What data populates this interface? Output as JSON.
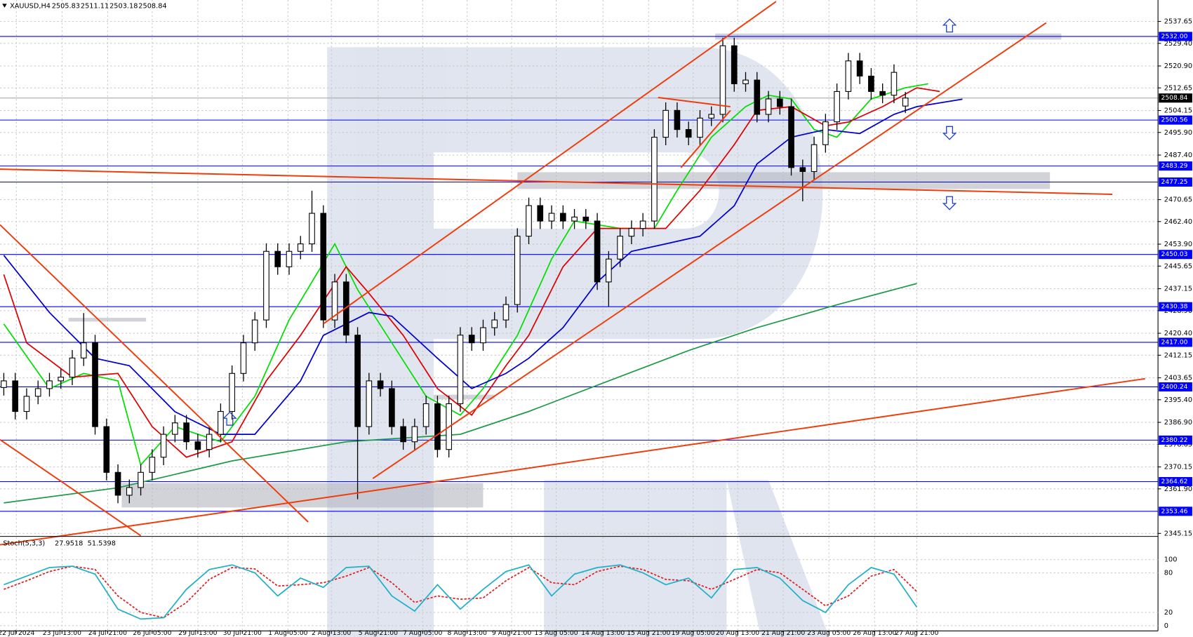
{
  "chart_data": {
    "type": "candlestick",
    "symbol": "XAUUSD,H4",
    "open": [
      2400.0,
      2402.5,
      2391.0,
      2396.7,
      2399.6,
      2402.5,
      2403.9,
      2411.1,
      2416.8,
      2385.3,
      2368.1,
      2359.5,
      2362.4,
      2368.1,
      2373.8,
      2382.4,
      2386.7,
      2379.6,
      2376.7,
      2382.4,
      2391.0,
      2405.3,
      2416.8,
      2425.4,
      2451.2,
      2445.4,
      2451.2,
      2454.0,
      2465.5,
      2425.4,
      2439.7,
      2419.7,
      2385.3,
      2402.5,
      2399.6,
      2385.3,
      2379.6,
      2385.3,
      2393.9,
      2376.7,
      2393.9,
      2419.7,
      2416.8,
      2422.5,
      2425.4,
      2431.2,
      2456.9,
      2468.4,
      2462.6,
      2465.5,
      2462.6,
      2464.1,
      2462.6,
      2439.7,
      2448.3,
      2456.9,
      2459.8,
      2462.6,
      2494.1,
      2504.2,
      2497.0,
      2494.1,
      2501.3,
      2502.7,
      2528.5,
      2514.2,
      2515.6,
      2502.7,
      2508.5,
      2505.6,
      2482.7,
      2481.2,
      2491.3,
      2499.9,
      2511.3,
      2522.8,
      2517.1,
      2511.3,
      2509.9,
      2505.83
    ],
    "high": [
      2405.5,
      2405.5,
      2399.7,
      2402.6,
      2405.5,
      2406.9,
      2414.1,
      2428.0,
      2419.8,
      2388.3,
      2371.1,
      2365.4,
      2371.1,
      2376.8,
      2385.4,
      2389.7,
      2389.7,
      2382.6,
      2385.4,
      2394.0,
      2408.3,
      2419.8,
      2428.4,
      2454.2,
      2454.2,
      2454.2,
      2457.0,
      2474.0,
      2468.5,
      2442.7,
      2442.7,
      2422.7,
      2405.5,
      2405.5,
      2402.6,
      2388.3,
      2388.3,
      2396.9,
      2396.9,
      2396.9,
      2422.7,
      2422.7,
      2425.5,
      2428.4,
      2434.2,
      2459.9,
      2471.4,
      2471.4,
      2468.5,
      2468.5,
      2467.1,
      2467.1,
      2465.6,
      2451.3,
      2459.9,
      2462.8,
      2465.6,
      2497.1,
      2507.2,
      2507.2,
      2500.0,
      2504.3,
      2505.7,
      2531.5,
      2531.5,
      2518.6,
      2518.6,
      2511.5,
      2511.5,
      2508.6,
      2485.7,
      2494.3,
      2502.9,
      2514.3,
      2525.8,
      2525.8,
      2520.1,
      2514.3,
      2521.5,
      2511.11
    ],
    "low": [
      2397.0,
      2388.0,
      2388.0,
      2393.7,
      2396.6,
      2399.5,
      2400.9,
      2408.1,
      2382.3,
      2365.1,
      2356.5,
      2356.5,
      2359.4,
      2365.1,
      2370.8,
      2379.4,
      2376.6,
      2373.7,
      2373.7,
      2379.4,
      2388.0,
      2402.3,
      2413.8,
      2422.4,
      2442.4,
      2442.4,
      2448.2,
      2451.0,
      2422.4,
      2422.4,
      2416.7,
      2358.0,
      2382.3,
      2396.6,
      2382.3,
      2376.6,
      2376.6,
      2382.3,
      2373.7,
      2373.7,
      2390.9,
      2413.8,
      2413.8,
      2419.5,
      2422.4,
      2428.2,
      2453.9,
      2459.6,
      2459.6,
      2459.6,
      2459.6,
      2459.6,
      2436.7,
      2430.5,
      2445.3,
      2453.9,
      2456.8,
      2459.6,
      2491.1,
      2494.0,
      2491.1,
      2491.1,
      2498.3,
      2499.7,
      2511.2,
      2511.2,
      2499.7,
      2499.7,
      2502.6,
      2479.7,
      2470.0,
      2478.2,
      2488.3,
      2496.9,
      2508.3,
      2514.1,
      2508.3,
      2506.9,
      2506.9,
      2503.18
    ],
    "close": [
      2402.5,
      2391.0,
      2396.7,
      2399.6,
      2402.5,
      2403.9,
      2411.1,
      2416.8,
      2385.3,
      2368.1,
      2359.5,
      2362.4,
      2368.1,
      2373.8,
      2382.4,
      2386.7,
      2379.6,
      2376.7,
      2382.4,
      2391.0,
      2405.3,
      2416.8,
      2425.4,
      2451.2,
      2445.4,
      2451.2,
      2454.0,
      2465.5,
      2425.4,
      2439.7,
      2419.7,
      2385.3,
      2402.5,
      2399.6,
      2385.3,
      2379.6,
      2385.3,
      2393.9,
      2376.7,
      2393.9,
      2419.7,
      2416.8,
      2422.5,
      2425.4,
      2431.2,
      2456.9,
      2468.4,
      2462.6,
      2465.5,
      2462.6,
      2464.1,
      2462.6,
      2439.7,
      2448.3,
      2456.9,
      2459.8,
      2462.6,
      2494.1,
      2504.2,
      2497.0,
      2494.1,
      2501.3,
      2502.7,
      2528.5,
      2514.2,
      2515.6,
      2502.7,
      2508.5,
      2505.6,
      2482.7,
      2481.2,
      2491.3,
      2499.9,
      2511.3,
      2522.8,
      2517.1,
      2511.3,
      2509.9,
      2518.5,
      2508.84
    ],
    "ylim": [
      2344.3,
      2545.7
    ],
    "yticks": [
      2537.65,
      {
        "value": 2529.4,
        "label": "2529.40"
      },
      {
        "value": 2520.9,
        "label": "2520.90"
      },
      2512.65,
      2504.15,
      {
        "value": 2495.9,
        "label": "2495.90"
      },
      {
        "value": 2487.4,
        "label": "2487.40"
      },
      2470.65,
      {
        "value": 2462.4,
        "label": "2462.40"
      },
      {
        "value": 2453.9,
        "label": "2453.90"
      },
      2445.65,
      2437.15,
      {
        "value": 2428.9,
        "label": "2428.90"
      },
      {
        "value": 2420.4,
        "label": "2420.40"
      },
      2412.15,
      2403.65,
      {
        "value": 2395.4,
        "label": "2395.40"
      },
      {
        "value": 2386.9,
        "label": "2386.90"
      },
      2378.65,
      2370.15,
      {
        "value": 2361.9,
        "label": "2361.90"
      },
      2345.15
    ],
    "levels": [
      {
        "value": 2532,
        "label": "2532.00"
      },
      2500.56,
      2483.29,
      2477.25,
      2450.03,
      2430.38,
      {
        "value": 2417,
        "label": "2417.00"
      },
      2400.24,
      2380.22,
      2364.62,
      2353.46
    ],
    "level_color": "#0000ff",
    "xticks": [
      {
        "value": 1.1,
        "label": "22 Jul 2024"
      },
      {
        "value": 5.1,
        "label": "23 Jul 13:00"
      },
      {
        "value": 9.1,
        "label": "24 Jul 21:00"
      },
      {
        "value": 13,
        "label": "26 Jul 05:00"
      },
      {
        "value": 17,
        "label": "29 Jul 13:00"
      },
      {
        "value": 20.9,
        "label": "30 Jul 21:00"
      },
      {
        "value": 24.9,
        "label": "1 Aug 05:00"
      },
      {
        "value": 28.7,
        "label": "2 Aug 13:00"
      },
      {
        "value": 32.8,
        "label": "5 Aug 21:00"
      },
      {
        "value": 36.7,
        "label": "7 Aug 05:00"
      },
      {
        "value": 40.6,
        "label": "8 Aug 13:00"
      },
      {
        "value": 44.5,
        "label": "9 Aug 21:00"
      },
      {
        "value": 48.4,
        "label": "13 Aug 05:00"
      },
      {
        "value": 52.5,
        "label": "14 Aug 13:00"
      },
      {
        "value": 56.5,
        "label": "15 Aug 21:00"
      },
      {
        "value": 60.4,
        "label": "19 Aug 05:00"
      },
      {
        "value": 64.3,
        "label": "20 Aug 13:00"
      },
      {
        "value": 68.3,
        "label": "21 Aug 21:00"
      },
      {
        "value": 72.3,
        "label": "23 Aug 05:00"
      },
      {
        "value": 76.3,
        "label": "26 Aug 13:00"
      },
      {
        "value": 80,
        "label": "27 Aug 21:00"
      }
    ],
    "grid": true,
    "up_color": "#ffffff",
    "down_color": "#000000",
    "ma": [
      {
        "color": "#00e000",
        "x": [
          0,
          4,
          7,
          10,
          12,
          15,
          19,
          22,
          25,
          29,
          31,
          34,
          37,
          40,
          42,
          45,
          48,
          50,
          54,
          57,
          59,
          62,
          65,
          67,
          69,
          71,
          73,
          76,
          79,
          81
        ],
        "values": [
          2423.9,
          2399.6,
          2405.3,
          2402.5,
          2370.9,
          2385.3,
          2379.6,
          2396.7,
          2425.4,
          2454.0,
          2436.8,
          2416.8,
          2396.7,
          2389.6,
          2399.6,
          2419.6,
          2448.3,
          2462.6,
          2459.8,
          2459.8,
          2474.1,
          2494.1,
          2505.6,
          2509.9,
          2508.5,
          2497.0,
          2494.1,
          2508.5,
          2512.7,
          2514.2
        ]
      },
      {
        "color": "#e00000",
        "x": [
          0,
          2,
          6,
          10,
          13,
          16,
          20,
          23,
          26,
          30,
          32,
          35,
          38,
          41,
          44,
          46,
          49,
          52,
          55,
          58,
          61,
          64,
          66,
          69,
          72,
          74,
          77,
          80,
          82
        ],
        "values": [
          2442.5,
          2416.8,
          2403.9,
          2405.3,
          2385.3,
          2373.8,
          2379.6,
          2402.5,
          2419.6,
          2445.4,
          2435.4,
          2419.6,
          2399.6,
          2389.6,
          2408.2,
          2419.6,
          2445.4,
          2459.8,
          2459.8,
          2459.8,
          2474.1,
          2491.3,
          2504.2,
          2505.6,
          2498.4,
          2499.8,
          2505.6,
          2512.7,
          2511.3
        ]
      },
      {
        "color": "#0000d0",
        "x": [
          0,
          4,
          8,
          11,
          15,
          19,
          22,
          26,
          28,
          32,
          34,
          38,
          41,
          44,
          46,
          49,
          52,
          55,
          58,
          61,
          64,
          66,
          69,
          72,
          75,
          78,
          80,
          84
        ],
        "values": [
          2449.7,
          2428.2,
          2411.0,
          2408.2,
          2390.9,
          2382.4,
          2382.4,
          2402.5,
          2419.6,
          2428.2,
          2426.8,
          2411.0,
          2399.6,
          2405.3,
          2411.0,
          2422.5,
          2439.7,
          2451.2,
          2454.0,
          2456.9,
          2468.3,
          2484.1,
          2494.1,
          2497.0,
          2495.5,
          2502.7,
          2505.6,
          2508.4
        ]
      },
      {
        "color": "#1f9a4a",
        "x": [
          0,
          10,
          20,
          30,
          40,
          46,
          53,
          60,
          66,
          73,
          80
        ],
        "values": [
          2356.6,
          2362.3,
          2372.4,
          2379.6,
          2382.4,
          2391.0,
          2402.5,
          2413.9,
          2422.5,
          2431.1,
          2439.1
        ]
      }
    ],
    "indicator": {
      "title": "Stoch(5,3,3)",
      "ylim": [
        -8,
        134
      ],
      "yticks": [
        100,
        80,
        20,
        0
      ],
      "x": [
        0,
        2,
        4,
        6,
        8,
        10,
        12,
        14,
        16,
        18,
        20,
        22,
        24,
        26,
        28,
        30,
        32,
        34,
        36,
        38,
        40,
        42,
        44,
        46,
        48,
        50,
        52,
        54,
        56,
        58,
        60,
        62,
        64,
        66,
        68,
        70,
        72,
        74,
        76,
        78,
        80
      ],
      "main": {
        "color": "#20b0c8",
        "values": [
          62,
          75,
          88,
          90,
          78,
          25,
          10,
          12,
          55,
          85,
          92,
          80,
          45,
          72,
          58,
          88,
          90,
          45,
          22,
          62,
          25,
          55,
          82,
          92,
          45,
          78,
          88,
          92,
          80,
          62,
          72,
          42,
          85,
          88,
          72,
          38,
          20,
          62,
          88,
          78,
          27.9518
        ]
      },
      "signal": {
        "color": "#e02020",
        "values": [
          55,
          68,
          82,
          90,
          85,
          45,
          20,
          12,
          35,
          70,
          88,
          86,
          60,
          62,
          65,
          75,
          88,
          65,
          35,
          45,
          40,
          42,
          68,
          88,
          65,
          62,
          82,
          90,
          85,
          70,
          68,
          55,
          70,
          85,
          80,
          55,
          30,
          45,
          75,
          85,
          51.5398
        ]
      }
    }
  }
}
